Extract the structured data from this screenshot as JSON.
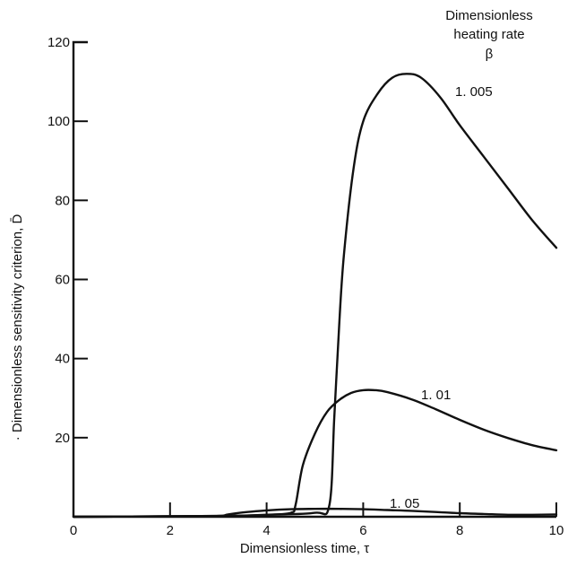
{
  "chart_data": {
    "type": "line",
    "xlabel": "Dimensionless time, τ",
    "ylabel": "· Dimensionless sensitivity criterion, D̄",
    "xlim": [
      0,
      10
    ],
    "ylim": [
      0,
      120
    ],
    "x_ticks": [
      0,
      2,
      4,
      6,
      8,
      10
    ],
    "y_ticks": [
      20,
      40,
      60,
      80,
      100,
      120
    ],
    "grid": false,
    "legend": {
      "title_lines": [
        "Dimensionless",
        "heating rate",
        "β"
      ],
      "placement": "top-right"
    },
    "series": [
      {
        "name": "1. 005",
        "x": [
          0,
          3,
          4,
          5,
          5.3,
          5.4,
          5.5,
          5.6,
          5.8,
          6.0,
          6.3,
          6.6,
          6.9,
          7.2,
          7.6,
          8.0,
          8.5,
          9.0,
          9.5,
          10
        ],
        "y": [
          0,
          0.2,
          0.5,
          1.0,
          3,
          25,
          48,
          66,
          88,
          100,
          107,
          111,
          112,
          111,
          106,
          99,
          91,
          83,
          75,
          68
        ]
      },
      {
        "name": "1. 01",
        "x": [
          0,
          3,
          4,
          4.5,
          4.6,
          4.75,
          5.0,
          5.25,
          5.5,
          5.75,
          6.0,
          6.25,
          6.5,
          7.0,
          7.5,
          8.0,
          8.5,
          9.0,
          9.5,
          10
        ],
        "y": [
          0,
          0.2,
          0.5,
          1,
          3,
          13,
          21,
          26.5,
          29.5,
          31.3,
          32,
          32,
          31.5,
          29.7,
          27.2,
          24.5,
          22,
          19.9,
          18.1,
          16.8
        ]
      },
      {
        "name": "1. 05",
        "x": [
          0,
          2,
          3,
          3.2,
          3.6,
          4.0,
          4.5,
          5.0,
          5.5,
          6.0,
          6.5,
          7.0,
          7.5,
          8.0,
          8.5,
          9.0,
          9.5,
          10
        ],
        "y": [
          0,
          0.1,
          0.2,
          0.6,
          1.2,
          1.6,
          1.9,
          2.0,
          2.0,
          1.9,
          1.7,
          1.5,
          1.2,
          0.9,
          0.7,
          0.5,
          0.5,
          0.6
        ]
      }
    ],
    "annotations": [
      "1. 005",
      "1. 01",
      "1. 05"
    ]
  }
}
